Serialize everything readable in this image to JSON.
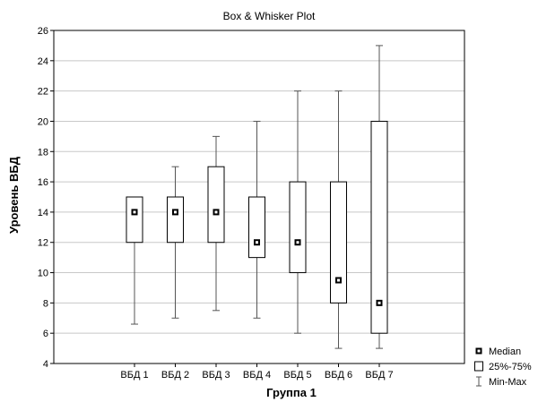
{
  "chart_data": {
    "type": "boxplot",
    "title": "Box & Whisker Plot",
    "xlabel": "Группа 1",
    "ylabel": "Уровень ВБД",
    "ylim": [
      4,
      26
    ],
    "yticks": [
      4,
      6,
      8,
      10,
      12,
      14,
      16,
      18,
      20,
      22,
      24,
      26
    ],
    "grid": true,
    "legend_position": "bottom-right",
    "categories": [
      "ВБД 1",
      "ВБД 2",
      "ВБД 3",
      "ВБД 4",
      "ВБД 5",
      "ВБД 6",
      "ВБД 7"
    ],
    "series": [
      {
        "min": 6.6,
        "q1": 12,
        "median": 14,
        "q3": 15,
        "max": 15
      },
      {
        "min": 7,
        "q1": 12,
        "median": 14,
        "q3": 15,
        "max": 17
      },
      {
        "min": 7.5,
        "q1": 12,
        "median": 14,
        "q3": 17,
        "max": 19
      },
      {
        "min": 7,
        "q1": 11,
        "median": 12,
        "q3": 15,
        "max": 20
      },
      {
        "min": 6,
        "q1": 10,
        "median": 12,
        "q3": 16,
        "max": 22
      },
      {
        "min": 5,
        "q1": 8,
        "median": 9.5,
        "q3": 16,
        "max": 22
      },
      {
        "min": 5,
        "q1": 6,
        "median": 8,
        "q3": 20,
        "max": 25
      }
    ],
    "legend": [
      {
        "label": "Median",
        "symbol": "median"
      },
      {
        "label": "25%-75%",
        "symbol": "box"
      },
      {
        "label": "Min-Max",
        "symbol": "whisker"
      }
    ]
  }
}
